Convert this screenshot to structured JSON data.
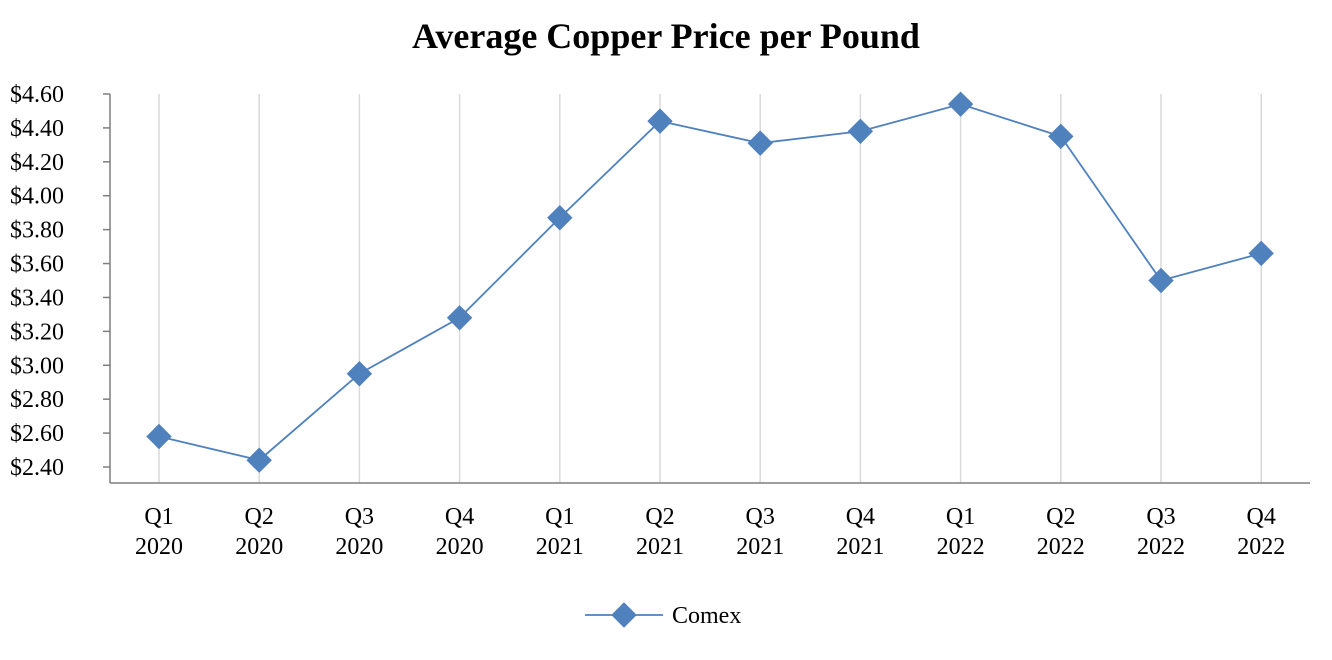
{
  "chart_data": {
    "type": "line",
    "title": "Average Copper Price per Pound",
    "xlabel": "",
    "ylabel": "",
    "categories": [
      [
        "Q1",
        "2020"
      ],
      [
        "Q2",
        "2020"
      ],
      [
        "Q3",
        "2020"
      ],
      [
        "Q4",
        "2020"
      ],
      [
        "Q1",
        "2021"
      ],
      [
        "Q2",
        "2021"
      ],
      [
        "Q3",
        "2021"
      ],
      [
        "Q4",
        "2021"
      ],
      [
        "Q1",
        "2022"
      ],
      [
        "Q2",
        "2022"
      ],
      [
        "Q3",
        "2022"
      ],
      [
        "Q4",
        "2022"
      ]
    ],
    "series": [
      {
        "name": "Comex",
        "color": "#4f81bd",
        "marker": "diamond",
        "values": [
          2.58,
          2.44,
          2.95,
          3.28,
          3.87,
          4.44,
          4.31,
          4.38,
          4.54,
          4.35,
          3.5,
          3.66
        ]
      }
    ],
    "ylim": [
      2.4,
      4.6
    ],
    "ytick_step": 0.2,
    "ytick_labels": [
      "$2.40",
      "$2.60",
      "$2.80",
      "$3.00",
      "$3.20",
      "$3.40",
      "$3.60",
      "$3.80",
      "$4.00",
      "$4.20",
      "$4.40",
      "$4.60"
    ],
    "grid": "vertical",
    "legend": "bottom-center"
  }
}
